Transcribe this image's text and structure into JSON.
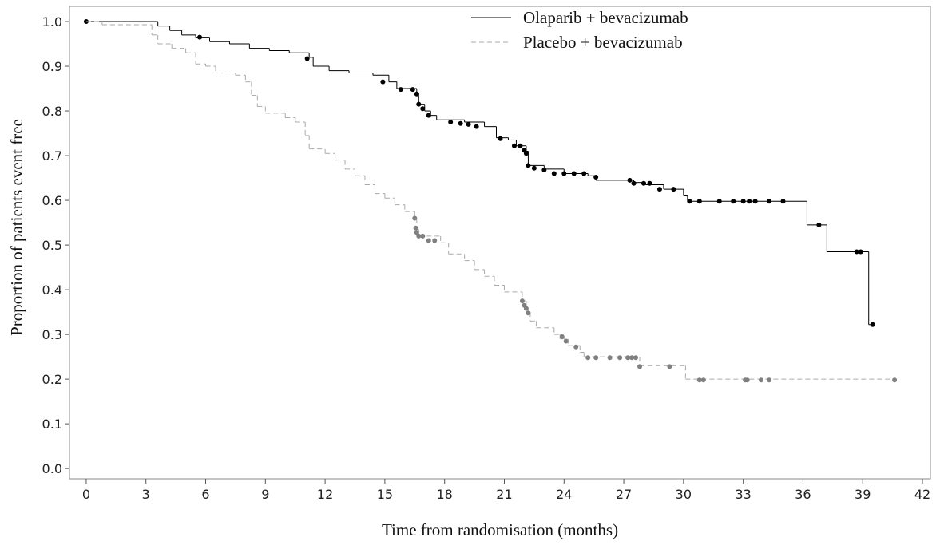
{
  "chart_data": {
    "type": "km",
    "x_label": "Time from randomisation (months)",
    "y_label": "Proportion of patients event free",
    "xlim": [
      -0.84,
      42.4
    ],
    "ylim": [
      -0.023,
      1.034
    ],
    "xticks": [
      0,
      3,
      6,
      9,
      12,
      15,
      18,
      21,
      24,
      27,
      30,
      33,
      36,
      39,
      42
    ],
    "yticks": [
      {
        "value": 0,
        "label": "0.0"
      },
      0.1,
      0.2,
      0.3,
      0.4,
      0.5,
      0.6,
      0.7,
      0.8,
      0.9,
      {
        "value": 1,
        "label": "1.0"
      }
    ],
    "legend": "top",
    "series": [
      {
        "name": "Olaparib + bevacizumab",
        "color": "#000000",
        "censor_color": "#000000",
        "dashed": false,
        "x": [
          0,
          3.6,
          4.2,
          4.8,
          5.5,
          6.2,
          7.2,
          8.2,
          9.2,
          10.2,
          11.2,
          11.4,
          12.2,
          13.2,
          14.4,
          15.2,
          15.6,
          16.6,
          16.7,
          17,
          17.3,
          17.6,
          19,
          20,
          20.6,
          21.2,
          21.6,
          22.1,
          22.2,
          23,
          24,
          25.2,
          25.6,
          27.5,
          28.1,
          29,
          30,
          30.2,
          36.2,
          37.2,
          39.3,
          39.6
        ],
        "values": [
          1.0,
          0.99,
          0.98,
          0.97,
          0.965,
          0.955,
          0.95,
          0.94,
          0.935,
          0.93,
          0.92,
          0.9,
          0.89,
          0.885,
          0.88,
          0.865,
          0.85,
          0.84,
          0.815,
          0.8,
          0.79,
          0.78,
          0.775,
          0.765,
          0.74,
          0.735,
          0.722,
          0.71,
          0.678,
          0.67,
          0.66,
          0.655,
          0.645,
          0.64,
          0.635,
          0.625,
          0.61,
          0.598,
          0.545,
          0.485,
          0.322,
          0.322
        ],
        "censor_x": [
          0,
          5.7,
          11.1,
          14.9,
          15.8,
          16.4,
          16.6,
          16.7,
          16.9,
          17.2,
          18.3,
          18.8,
          19.2,
          19.6,
          20.8,
          21.5,
          21.8,
          22.0,
          22.1,
          22.2,
          22.5,
          23,
          23.5,
          24,
          24.5,
          25,
          25.6,
          27.3,
          27.5,
          28,
          28.3,
          28.8,
          29.5,
          30.3,
          30.8,
          31.8,
          32.5,
          33,
          33.3,
          33.6,
          34.3,
          35,
          36.8,
          38.7,
          38.9,
          39.5
        ],
        "censor_values": [
          1.0,
          0.965,
          0.917,
          0.865,
          0.848,
          0.848,
          0.838,
          0.815,
          0.805,
          0.79,
          0.775,
          0.772,
          0.77,
          0.765,
          0.738,
          0.722,
          0.722,
          0.712,
          0.705,
          0.678,
          0.672,
          0.668,
          0.66,
          0.66,
          0.66,
          0.66,
          0.652,
          0.645,
          0.638,
          0.638,
          0.638,
          0.625,
          0.625,
          0.598,
          0.598,
          0.598,
          0.598,
          0.598,
          0.598,
          0.598,
          0.598,
          0.598,
          0.545,
          0.485,
          0.485,
          0.322
        ]
      },
      {
        "name": "Placebo + bevacizumab",
        "color": "#aaaaaa",
        "censor_color": "#808080",
        "dashed": true,
        "x": [
          0,
          0.8,
          3.3,
          3.6,
          4.3,
          5,
          5.5,
          6,
          6.5,
          7.5,
          8,
          8.3,
          8.6,
          9,
          10,
          10.5,
          11,
          11.2,
          12,
          12.5,
          13,
          13.5,
          14,
          14.5,
          15,
          15.5,
          16,
          16.5,
          16.6,
          16.7,
          17.8,
          18.2,
          19,
          19.5,
          20,
          20.5,
          21,
          21.9,
          22.1,
          22.3,
          22.6,
          23.5,
          23.8,
          24.2,
          24.8,
          25,
          27.8,
          30.1,
          40.6
        ],
        "values": [
          1.0,
          0.993,
          0.97,
          0.95,
          0.94,
          0.93,
          0.905,
          0.9,
          0.885,
          0.88,
          0.865,
          0.835,
          0.81,
          0.795,
          0.785,
          0.775,
          0.745,
          0.715,
          0.705,
          0.69,
          0.67,
          0.655,
          0.635,
          0.615,
          0.605,
          0.59,
          0.575,
          0.56,
          0.535,
          0.52,
          0.505,
          0.48,
          0.465,
          0.445,
          0.43,
          0.41,
          0.395,
          0.375,
          0.35,
          0.33,
          0.315,
          0.3,
          0.29,
          0.275,
          0.26,
          0.25,
          0.23,
          0.2,
          0.2
        ],
        "censor_x": [
          16.5,
          16.55,
          16.6,
          16.7,
          16.9,
          17.2,
          17.5,
          21.9,
          22,
          22.1,
          22.2,
          23.9,
          24.1,
          24.6,
          25.2,
          25.6,
          26.3,
          26.8,
          27.2,
          27.4,
          27.6,
          27.8,
          29.3,
          30.8,
          31,
          33.1,
          33.2,
          33.9,
          34.3,
          40.6
        ],
        "censor_values": [
          0.56,
          0.538,
          0.528,
          0.52,
          0.52,
          0.51,
          0.51,
          0.375,
          0.365,
          0.358,
          0.348,
          0.295,
          0.285,
          0.272,
          0.248,
          0.248,
          0.248,
          0.248,
          0.248,
          0.248,
          0.248,
          0.228,
          0.228,
          0.198,
          0.198,
          0.198,
          0.198,
          0.198,
          0.198,
          0.198
        ]
      }
    ]
  }
}
